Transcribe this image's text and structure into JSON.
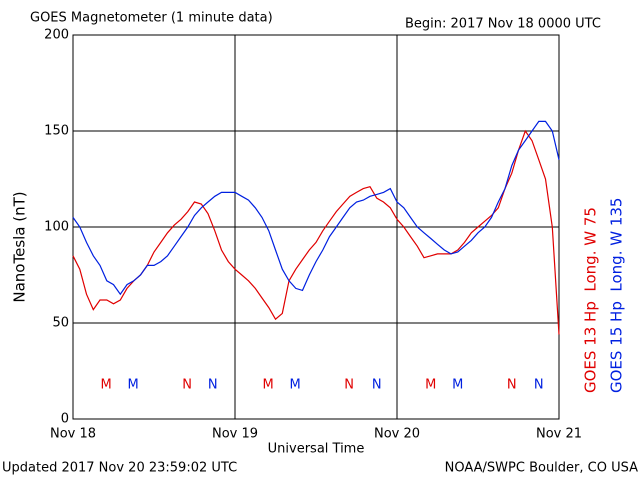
{
  "chart_data": {
    "type": "line",
    "title": "GOES Magnetometer (1 minute data)",
    "subtitle": "Begin:  2017 Nov 18 0000 UTC",
    "ylabel": "NanoTesla (nT)",
    "xlabel": "Universal Time",
    "footer_left": "Updated 2017 Nov 20 23:59:02 UTC",
    "footer_right": "NOAA/SWPC Boulder, CO USA",
    "x": [
      0,
      1,
      2,
      3,
      4,
      5,
      6,
      7,
      8,
      9,
      10,
      11,
      12,
      13,
      14,
      15,
      16,
      17,
      18,
      19,
      20,
      21,
      22,
      23,
      24,
      25,
      26,
      27,
      28,
      29,
      30,
      31,
      32,
      33,
      34,
      35,
      36,
      37,
      38,
      39,
      40,
      41,
      42,
      43,
      44,
      45,
      46,
      47,
      48,
      49,
      50,
      51,
      52,
      53,
      54,
      55,
      56,
      57,
      58,
      59,
      60,
      61,
      62,
      63,
      64,
      65,
      66,
      67,
      68,
      69,
      70,
      71,
      72
    ],
    "series": [
      {
        "name": "GOES 13 Hp  Long. W 75",
        "color": "#e00000",
        "values": [
          85,
          78,
          65,
          57,
          62,
          62,
          60,
          62,
          68,
          72,
          75,
          80,
          87,
          92,
          97,
          101,
          104,
          108,
          113,
          112,
          107,
          98,
          88,
          82,
          78,
          75,
          72,
          68,
          63,
          58,
          52,
          55,
          72,
          78,
          83,
          88,
          92,
          98,
          103,
          108,
          112,
          116,
          118,
          120,
          121,
          115,
          113,
          110,
          104,
          100,
          95,
          90,
          84,
          85,
          86,
          86,
          86,
          88,
          92,
          97,
          100,
          103,
          106,
          110,
          120,
          128,
          140,
          150,
          145,
          135,
          125,
          100,
          44
        ]
      },
      {
        "name": "GOES 15 Hp  Long. W 135",
        "color": "#0020e0",
        "values": [
          105,
          100,
          92,
          85,
          80,
          72,
          70,
          65,
          70,
          72,
          75,
          80,
          80,
          82,
          85,
          90,
          95,
          100,
          106,
          110,
          113,
          116,
          118,
          118,
          118,
          116,
          114,
          110,
          105,
          98,
          88,
          78,
          72,
          68,
          67,
          75,
          82,
          88,
          95,
          100,
          105,
          110,
          113,
          114,
          116,
          117,
          118,
          120,
          113,
          110,
          105,
          100,
          97,
          94,
          91,
          88,
          86,
          87,
          90,
          93,
          97,
          100,
          105,
          113,
          120,
          132,
          140,
          145,
          150,
          155,
          155,
          150,
          135
        ]
      }
    ],
    "xlim": [
      0,
      72
    ],
    "xticks": [
      {
        "value": 0,
        "label": "Nov 18"
      },
      {
        "value": 24,
        "label": "Nov 19"
      },
      {
        "value": 48,
        "label": "Nov 20"
      },
      {
        "value": 72,
        "label": "Nov 21"
      }
    ],
    "ylim": [
      0,
      200
    ],
    "yticks": [
      0,
      50,
      100,
      150,
      200
    ],
    "grid": true,
    "annotations": [
      {
        "text": "M",
        "x": 4.9,
        "y": 17.7,
        "color": "#e00000"
      },
      {
        "text": "M",
        "x": 8.9,
        "y": 17.7,
        "color": "#0020e0"
      },
      {
        "text": "N",
        "x": 16.9,
        "y": 17.7,
        "color": "#e00000"
      },
      {
        "text": "N",
        "x": 20.7,
        "y": 17.7,
        "color": "#0020e0"
      },
      {
        "text": "M",
        "x": 28.9,
        "y": 17.7,
        "color": "#e00000"
      },
      {
        "text": "M",
        "x": 32.9,
        "y": 17.7,
        "color": "#0020e0"
      },
      {
        "text": "N",
        "x": 40.9,
        "y": 17.7,
        "color": "#e00000"
      },
      {
        "text": "N",
        "x": 45,
        "y": 17.7,
        "color": "#0020e0"
      },
      {
        "text": "M",
        "x": 53,
        "y": 17.7,
        "color": "#e00000"
      },
      {
        "text": "M",
        "x": 57,
        "y": 17.7,
        "color": "#0020e0"
      },
      {
        "text": "N",
        "x": 65,
        "y": 17.7,
        "color": "#e00000"
      },
      {
        "text": "N",
        "x": 69,
        "y": 17.7,
        "color": "#0020e0"
      }
    ]
  }
}
